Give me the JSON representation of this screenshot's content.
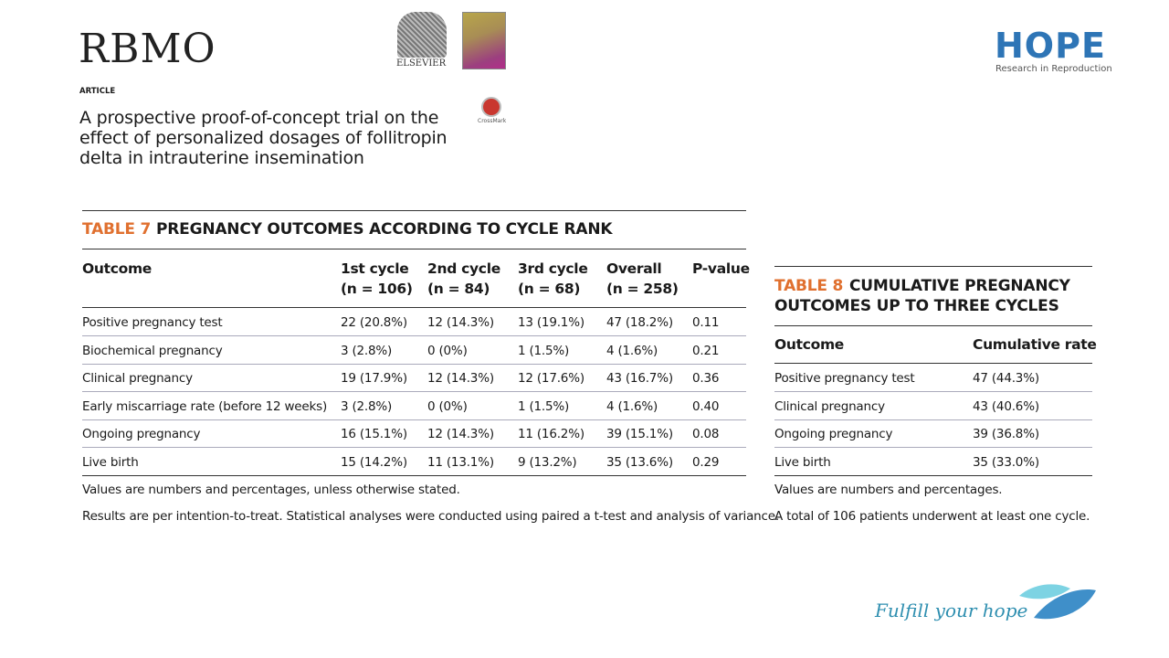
{
  "header": {
    "journal_logo": "RBMO",
    "publisher": "ELSEVIER",
    "crossmark": "CrossMark",
    "brand": "HOPE",
    "brand_tagline": "Research in Reproduction",
    "section": "ARTICLE",
    "title_lines": [
      "A prospective proof-of-concept trial on the",
      "effect of personalized dosages of follitropin",
      "delta in intrauterine insemination"
    ]
  },
  "table7": {
    "label": "TABLE 7",
    "title": "PREGNANCY OUTCOMES ACCORDING TO CYCLE RANK",
    "columns": [
      {
        "line1": "Outcome"
      },
      {
        "line1": "1st cycle",
        "line2": "(n = 106)"
      },
      {
        "line1": "2nd cycle",
        "line2": "(n = 84)"
      },
      {
        "line1": "3rd cycle",
        "line2": "(n = 68)"
      },
      {
        "line1": "Overall",
        "line2": "(n = 258)"
      },
      {
        "line1": "P-value"
      }
    ],
    "rows": [
      [
        "Positive pregnancy test",
        "22 (20.8%)",
        "12 (14.3%)",
        "13 (19.1%)",
        "47 (18.2%)",
        "0.11"
      ],
      [
        "Biochemical pregnancy",
        "3 (2.8%)",
        "0 (0%)",
        "1 (1.5%)",
        "4 (1.6%)",
        "0.21"
      ],
      [
        "Clinical pregnancy",
        "19 (17.9%)",
        "12 (14.3%)",
        "12 (17.6%)",
        "43 (16.7%)",
        "0.36"
      ],
      [
        "Early miscarriage rate (before 12 weeks)",
        "3 (2.8%)",
        "0 (0%)",
        "1 (1.5%)",
        "4 (1.6%)",
        "0.40"
      ],
      [
        "Ongoing pregnancy",
        "16 (15.1%)",
        "12 (14.3%)",
        "11 (16.2%)",
        "39 (15.1%)",
        "0.08"
      ],
      [
        "Live birth",
        "15 (14.2%)",
        "11 (13.1%)",
        "9 (13.2%)",
        "35 (13.6%)",
        "0.29"
      ]
    ],
    "notes": [
      "Values are numbers and percentages, unless otherwise stated.",
      "Results are per intention-to-treat. Statistical analyses were conducted using paired a t-test and analysis of variance."
    ]
  },
  "table8": {
    "label": "TABLE 8",
    "title_lines": [
      "CUMULATIVE PREGNANCY",
      "OUTCOMES UP TO THREE CYCLES"
    ],
    "columns": [
      "Outcome",
      "Cumulative rate"
    ],
    "rows": [
      [
        "Positive pregnancy test",
        "47 (44.3%)"
      ],
      [
        "Clinical pregnancy",
        "43 (40.6%)"
      ],
      [
        "Ongoing pregnancy",
        "39 (36.8%)"
      ],
      [
        "Live birth",
        "35 (33.0%)"
      ]
    ],
    "notes": [
      "Values are numbers and percentages.",
      "A total of 106 patients underwent at least one cycle."
    ]
  },
  "footer": {
    "slogan": "Fulfill your hope"
  }
}
